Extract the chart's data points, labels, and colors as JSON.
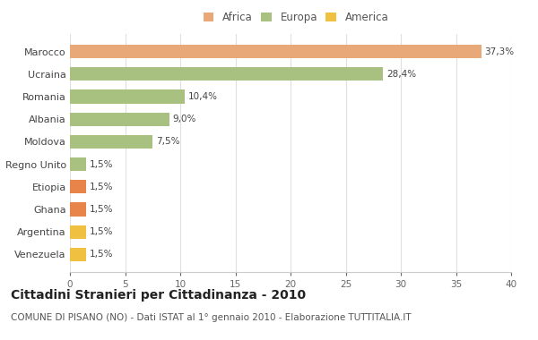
{
  "categories": [
    "Marocco",
    "Ucraina",
    "Romania",
    "Albania",
    "Moldova",
    "Regno Unito",
    "Etiopia",
    "Ghana",
    "Argentina",
    "Venezuela"
  ],
  "values": [
    37.3,
    28.4,
    10.4,
    9.0,
    7.5,
    1.5,
    1.5,
    1.5,
    1.5,
    1.5
  ],
  "labels": [
    "37,3%",
    "28,4%",
    "10,4%",
    "9,0%",
    "7,5%",
    "1,5%",
    "1,5%",
    "1,5%",
    "1,5%",
    "1,5%"
  ],
  "colors": [
    "#e8a878",
    "#a8c080",
    "#a8c080",
    "#a8c080",
    "#a8c080",
    "#a8c080",
    "#e8834a",
    "#e8834a",
    "#f0c040",
    "#f0c040"
  ],
  "legend": [
    {
      "label": "Africa",
      "color": "#e8a878"
    },
    {
      "label": "Europa",
      "color": "#a8c080"
    },
    {
      "label": "America",
      "color": "#f0c040"
    }
  ],
  "title": "Cittadini Stranieri per Cittadinanza - 2010",
  "subtitle": "COMUNE DI PISANO (NO) - Dati ISTAT al 1° gennaio 2010 - Elaborazione TUTTITALIA.IT",
  "xlim": [
    0,
    40
  ],
  "xticks": [
    0,
    5,
    10,
    15,
    20,
    25,
    30,
    35,
    40
  ],
  "background_color": "#ffffff",
  "grid_color": "#e0e0e0",
  "title_fontsize": 10,
  "subtitle_fontsize": 7.5,
  "bar_height": 0.6
}
